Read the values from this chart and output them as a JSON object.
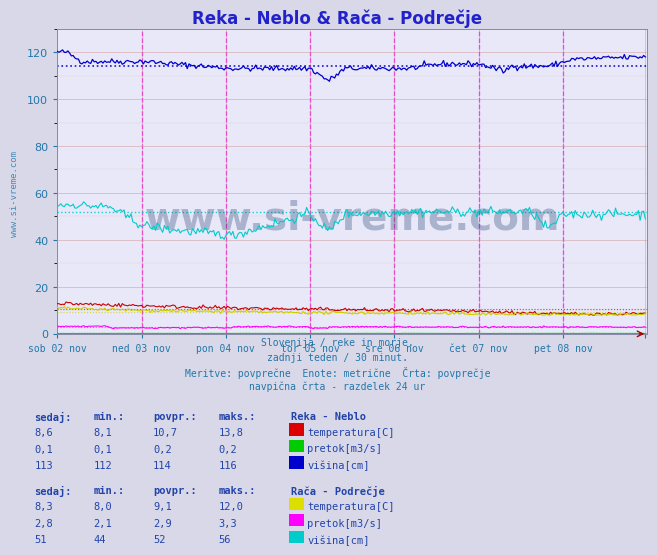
{
  "title": "Reka - Neblo & Rača - Podrečje",
  "title_color": "#2222cc",
  "bg_color": "#d8d8e8",
  "plot_bg_color": "#e8e8f8",
  "grid_major_color": "#cc8888",
  "grid_minor_color": "#ddbbbb",
  "xlabel_dates": [
    "sob 02 nov",
    "ned 03 nov",
    "pon 04 nov",
    "tor 05 nov",
    "sre 06 nov",
    "čet 07 nov",
    "pet 08 nov"
  ],
  "ylim": [
    0,
    130
  ],
  "xlim": [
    0,
    336
  ],
  "n_points": 336,
  "watermark": "www.si-vreme.com",
  "watermark_color": "#1a3a6a",
  "side_text": "www.si-vreme.com",
  "subtitle_lines": [
    "Slovenija / reke in morje.",
    "zadnji teden / 30 minut.",
    "Meritve: povrpečne  Enote: metrične  Črta: povrpečje",
    "navpična črta - razdelek 24 ur"
  ],
  "subtitle_color": "#2277aa",
  "vline_color": "#ff00ff",
  "neblo_temp_color": "#cc0000",
  "neblo_flow_color": "#00cc00",
  "neblo_height_color": "#0000cc",
  "raca_temp_color": "#cccc00",
  "raca_flow_color": "#ff00ff",
  "raca_height_color": "#00cccc",
  "neblo_temp_avg": 10.7,
  "neblo_flow_avg": 0.2,
  "neblo_height_avg": 114,
  "raca_temp_avg": 9.1,
  "raca_flow_avg": 2.9,
  "raca_height_avg": 52,
  "table_text_color": "#2244aa",
  "table_header_color": "#2244aa",
  "col_headers": [
    "sedaj:",
    "min.:",
    "povpr.:",
    "maks.:"
  ],
  "neblo_label": "Reka - Neblo",
  "raca_label": "Rača - Podrečje",
  "neblo_rows": [
    {
      "sedaj": "8,6",
      "min": "8,1",
      "povpr": "10,7",
      "maks": "13,8",
      "color": "#dd0000",
      "unit": "temperatura[C]"
    },
    {
      "sedaj": "0,1",
      "min": "0,1",
      "povpr": "0,2",
      "maks": "0,2",
      "color": "#00cc00",
      "unit": "pretok[m3/s]"
    },
    {
      "sedaj": "113",
      "min": "112",
      "povpr": "114",
      "maks": "116",
      "color": "#0000cc",
      "unit": "višina[cm]"
    }
  ],
  "raca_rows": [
    {
      "sedaj": "8,3",
      "min": "8,0",
      "povpr": "9,1",
      "maks": "12,0",
      "color": "#dddd00",
      "unit": "temperatura[C]"
    },
    {
      "sedaj": "2,8",
      "min": "2,1",
      "povpr": "2,9",
      "maks": "3,3",
      "color": "#ff00ff",
      "unit": "pretok[m3/s]"
    },
    {
      "sedaj": "51",
      "min": "44",
      "povpr": "52",
      "maks": "56",
      "color": "#00cccc",
      "unit": "višina[cm]"
    }
  ]
}
